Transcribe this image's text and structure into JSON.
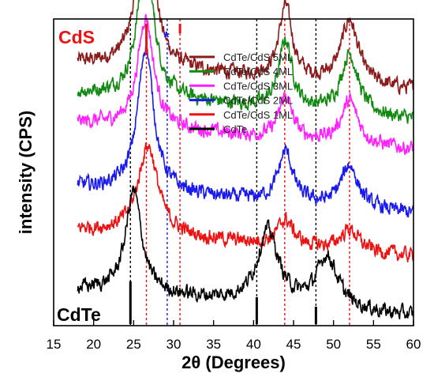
{
  "chart_data": {
    "type": "line",
    "xlabel": "2θ (Degrees)",
    "ylabel": "intensity (CPS)",
    "xlim": [
      15,
      60
    ],
    "x_ticks": [
      15,
      20,
      25,
      30,
      35,
      40,
      45,
      50,
      55,
      60
    ],
    "x_tick_labels": [
      "15",
      "20",
      "25",
      "30",
      "35",
      "40",
      "45",
      "50",
      "55",
      "60"
    ],
    "y_ticks_shown": false,
    "grid": false,
    "legend_position": "top-right",
    "series": [
      {
        "name": "CdTe/CdS 5ML",
        "color": "#8b1a1a",
        "baseline": 0.56,
        "peaks": [
          [
            26.5,
            0.4,
            1.2
          ],
          [
            44.0,
            0.17,
            1.0
          ],
          [
            52.0,
            0.15,
            1.3
          ]
        ]
      },
      {
        "name": "CdTe/CdS 4ML",
        "color": "#128a12",
        "baseline": 0.49,
        "peaks": [
          [
            26.5,
            0.34,
            1.2
          ],
          [
            44.0,
            0.16,
            1.0
          ],
          [
            52.0,
            0.14,
            1.3
          ]
        ]
      },
      {
        "name": "CdTe/CdS 3ML",
        "color": "#ff22ff",
        "baseline": 0.42,
        "peaks": [
          [
            26.5,
            0.26,
            1.2
          ],
          [
            44.0,
            0.1,
            1.0
          ],
          [
            52.0,
            0.1,
            1.3
          ]
        ]
      },
      {
        "name": "CdTe/CdS 2ML",
        "color": "#1a1aee",
        "baseline": 0.27,
        "peaks": [
          [
            26.5,
            0.34,
            1.2
          ],
          [
            44.0,
            0.12,
            1.1
          ],
          [
            52.0,
            0.1,
            1.3
          ]
        ]
      },
      {
        "name": "CdTe/CdS 1ML",
        "color": "#ee1111",
        "baseline": 0.17,
        "peaks": [
          [
            26.8,
            0.21,
            1.5
          ],
          [
            44.0,
            0.06,
            1.2
          ],
          [
            52.0,
            0.05,
            1.4
          ]
        ]
      },
      {
        "name": "CdTe",
        "color": "#000000",
        "baseline": 0.03,
        "peaks": [
          [
            25.0,
            0.24,
            1.2
          ],
          [
            41.8,
            0.17,
            1.6
          ],
          [
            49.2,
            0.12,
            1.6
          ]
        ]
      }
    ],
    "reference_lines": [
      {
        "x": 24.6,
        "color": "#000000"
      },
      {
        "x": 26.6,
        "color": "#ee1111"
      },
      {
        "x": 29.2,
        "color": "#1a1aee"
      },
      {
        "x": 30.8,
        "color": "#ee1111"
      },
      {
        "x": 40.4,
        "color": "#000000"
      },
      {
        "x": 43.9,
        "color": "#ee1111"
      },
      {
        "x": 47.8,
        "color": "#000000"
      },
      {
        "x": 52.0,
        "color": "#ee1111"
      }
    ],
    "reference_bars": [
      {
        "x": 26.6,
        "color": "#ee1111",
        "group": "CdS"
      },
      {
        "x": 30.8,
        "color": "#ee1111",
        "group": "CdS"
      },
      {
        "x": 24.6,
        "color": "#000000",
        "group": "CdTe"
      },
      {
        "x": 40.4,
        "color": "#000000",
        "group": "CdTe"
      },
      {
        "x": 47.8,
        "color": "#000000",
        "group": "CdTe"
      }
    ],
    "reference_set_labels": {
      "cds": {
        "text": "CdS",
        "color": "#ee1111"
      },
      "cdte": {
        "text": "CdTe",
        "color": "#000000"
      }
    },
    "annotations": [
      {
        "text": "*",
        "x": 29.1,
        "color": "#1a1aee"
      }
    ]
  }
}
